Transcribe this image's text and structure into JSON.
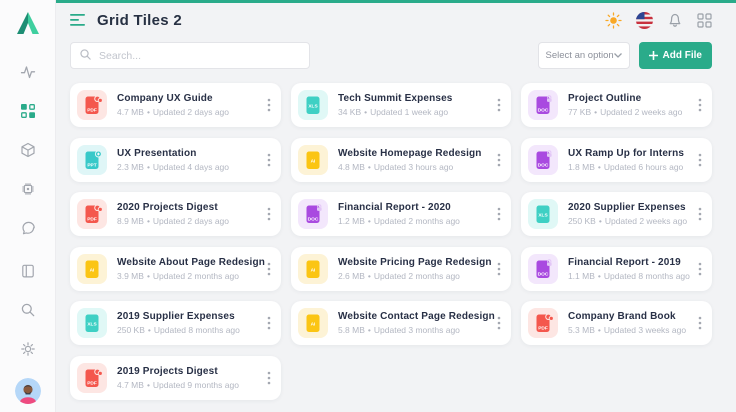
{
  "accent": "#2aab8a",
  "header": {
    "title": "Grid Tiles 2",
    "right_icons": [
      "sun-icon",
      "us-flag-icon",
      "bell-icon",
      "apps-icon"
    ]
  },
  "toolbar": {
    "search_placeholder": "Search...",
    "select_value": "Select an option",
    "add_file_label": "Add File"
  },
  "sidebar": {
    "top_icons": [
      "activity-icon",
      "dashboard-grid-icon",
      "box-icon",
      "chip-icon",
      "chat-icon"
    ],
    "bottom_icons": [
      "book-icon",
      "search-icon",
      "gear-icon",
      "avatar"
    ],
    "active_icon": "dashboard-grid-icon"
  },
  "meta_separator": "•",
  "file_types": {
    "pdf": {
      "main": "#f4574d",
      "tint": "#fde6e3",
      "badge": "cloud"
    },
    "xls": {
      "main": "#3ed0c4",
      "tint": "#e0f8f6",
      "badge": null
    },
    "doc": {
      "main": "#a94ae0",
      "tint": "#f3e7fc",
      "badge": "lock"
    },
    "ppt": {
      "main": "#38c9c9",
      "tint": "#dff6f7",
      "badge": "plus"
    },
    "ai": {
      "main": "#fbc513",
      "tint": "#fdf3d6",
      "badge": null
    }
  },
  "files": [
    {
      "name": "Company UX Guide",
      "type": "pdf",
      "ext": "PDF",
      "size": "4.7 MB",
      "updated": "Updated 2 days ago"
    },
    {
      "name": "Tech Summit Expenses",
      "type": "xls",
      "ext": "XLS",
      "size": "34 KB",
      "updated": "Updated 1 week ago"
    },
    {
      "name": "Project Outline",
      "type": "doc",
      "ext": "DOC",
      "size": "77 KB",
      "updated": "Updated 2 weeks ago"
    },
    {
      "name": "UX Presentation",
      "type": "ppt",
      "ext": "PPT",
      "size": "2.3 MB",
      "updated": "Updated 4 days ago"
    },
    {
      "name": "Website Homepage Redesign",
      "type": "ai",
      "ext": "AI",
      "size": "4.8 MB",
      "updated": "Updated 3 hours ago"
    },
    {
      "name": "UX Ramp Up for Interns",
      "type": "doc",
      "ext": "DOC",
      "size": "1.8 MB",
      "updated": "Updated 6 hours ago"
    },
    {
      "name": "2020 Projects Digest",
      "type": "pdf",
      "ext": "PDF",
      "size": "8.9 MB",
      "updated": "Updated 2 days ago"
    },
    {
      "name": "Financial Report - 2020",
      "type": "doc",
      "ext": "DOC",
      "size": "1.2 MB",
      "updated": "Updated 2 months ago"
    },
    {
      "name": "2020 Supplier Expenses",
      "type": "xls",
      "ext": "XLS",
      "size": "250 KB",
      "updated": "Updated 2 weeks ago"
    },
    {
      "name": "Website About Page Redesign",
      "type": "ai",
      "ext": "AI",
      "size": "3.9 MB",
      "updated": "Updated 2 months ago"
    },
    {
      "name": "Website Pricing Page Redesign",
      "type": "ai",
      "ext": "AI",
      "size": "2.6 MB",
      "updated": "Updated 2 months ago"
    },
    {
      "name": "Financial Report - 2019",
      "type": "doc",
      "ext": "DOC",
      "size": "1.1 MB",
      "updated": "Updated 8 months ago"
    },
    {
      "name": "2019 Supplier Expenses",
      "type": "xls",
      "ext": "XLS",
      "size": "250 KB",
      "updated": "Updated 8 months ago"
    },
    {
      "name": "Website Contact Page Redesign",
      "type": "ai",
      "ext": "AI",
      "size": "5.8 MB",
      "updated": "Updated 3 months ago"
    },
    {
      "name": "Company Brand Book",
      "type": "pdf",
      "ext": "PDF",
      "size": "5.3 MB",
      "updated": "Updated 3 weeks ago"
    },
    {
      "name": "2019 Projects Digest",
      "type": "pdf",
      "ext": "PDF",
      "size": "4.7 MB",
      "updated": "Updated 9 months ago"
    }
  ]
}
